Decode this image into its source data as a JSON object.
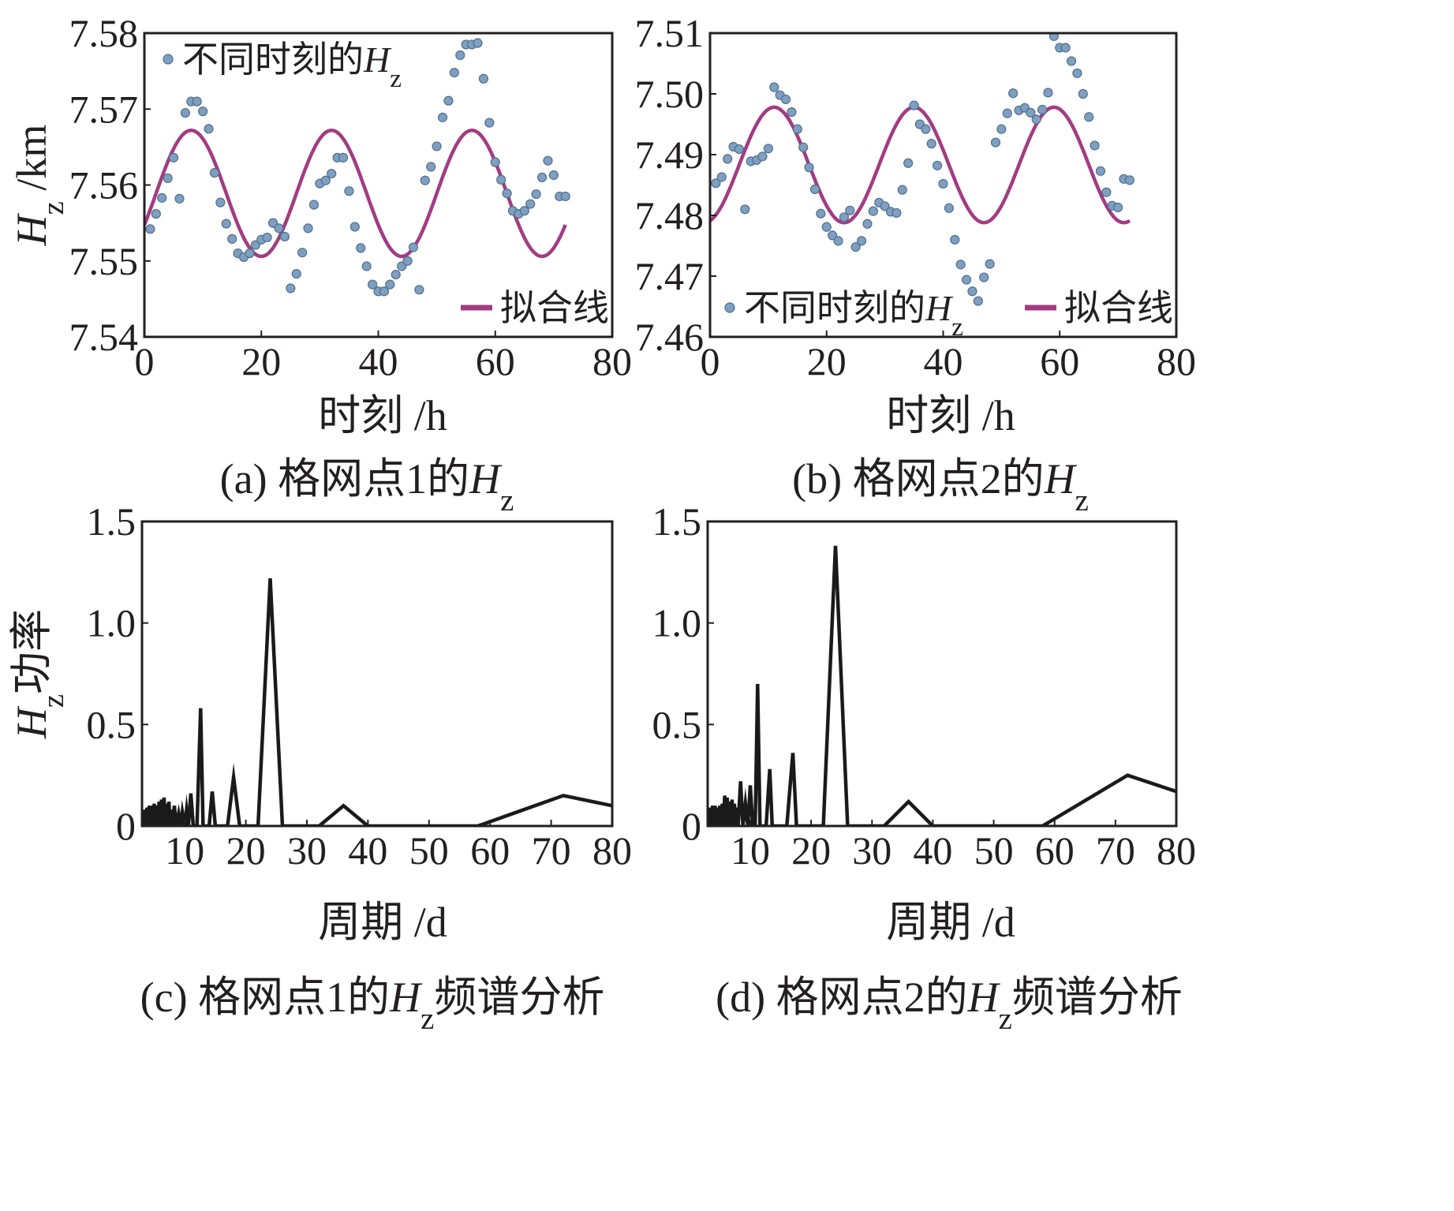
{
  "colors": {
    "scatter_fill": "#7f9fc0",
    "scatter_stroke": "#4f6f90",
    "fit_line": "#a23c82",
    "spectrum_line": "#1a1a1a",
    "ink": "#231f20"
  },
  "chart_data": [
    {
      "id": "a",
      "type": "scatter+line",
      "caption": {
        "prefix": "(a) 格网点1的",
        "var": "H",
        "sub": "z"
      },
      "xlabel": "时刻 /h",
      "ylabel": {
        "var": "H",
        "sub": "z",
        "unit": " /km"
      },
      "xlim": [
        0,
        80
      ],
      "ylim": [
        7.54,
        7.58
      ],
      "xticks": [
        0,
        20,
        40,
        60,
        80
      ],
      "xtick_labels": [
        "0",
        "20",
        "40",
        "60",
        "80"
      ],
      "yticks": [
        7.54,
        7.55,
        7.56,
        7.57,
        7.58
      ],
      "ytick_labels": [
        "7.54",
        "7.55",
        "7.56",
        "7.57",
        "7.58"
      ],
      "legend": {
        "scatter": {
          "text": "不同时刻的",
          "var": "H",
          "sub": "z"
        },
        "fit": "拟合线"
      },
      "legend_placement": {
        "scatter": "top-left",
        "fit": "bottom-right"
      },
      "points": {
        "x": [
          1,
          2,
          3,
          4,
          5,
          6,
          7,
          8,
          9,
          10,
          11,
          12,
          13,
          14,
          15,
          16,
          17,
          18,
          19,
          20,
          21,
          22,
          23,
          24,
          25,
          26,
          27,
          28,
          29,
          30,
          31,
          32,
          33,
          34,
          35,
          36,
          37,
          38,
          39,
          40,
          41,
          42,
          43,
          44,
          45,
          46,
          47,
          48,
          49,
          50,
          51,
          52,
          53,
          54,
          55,
          56,
          57,
          58,
          59,
          60,
          61,
          62,
          63,
          64,
          65,
          66,
          67,
          68,
          69,
          70,
          71,
          72
        ],
        "y": [
          7.5542,
          7.5562,
          7.5583,
          7.5609,
          7.5636,
          7.5582,
          7.5695,
          7.571,
          7.571,
          7.5697,
          7.5674,
          7.5616,
          7.5577,
          7.5549,
          7.5529,
          7.551,
          7.5505,
          7.551,
          7.5521,
          7.5528,
          7.5531,
          7.555,
          7.5543,
          7.5532,
          7.5464,
          7.5483,
          7.5511,
          7.5543,
          7.5574,
          7.5602,
          7.5606,
          7.5615,
          7.5636,
          7.5636,
          7.5592,
          7.5545,
          7.5517,
          7.5493,
          7.5469,
          7.546,
          7.546,
          7.5469,
          7.5482,
          7.5493,
          7.55,
          7.5518,
          7.5462,
          7.5606,
          7.5624,
          7.5651,
          7.5689,
          7.5711,
          7.5748,
          7.5771,
          7.5785,
          7.5785,
          7.5787,
          7.574,
          7.5682,
          7.563,
          7.5607,
          7.5589,
          7.5566,
          7.5562,
          7.5566,
          7.5575,
          7.5588,
          7.561,
          7.5632,
          7.5613,
          7.5585,
          7.5585
        ]
      },
      "fit": {
        "mean": 7.5589,
        "amplitude": 0.0083,
        "period_h": 24,
        "phase_h": 8,
        "x_start": 0,
        "x_end": 72
      }
    },
    {
      "id": "b",
      "type": "scatter+line",
      "caption": {
        "prefix": "(b) 格网点2的",
        "var": "H",
        "sub": "z"
      },
      "xlabel": "时刻 /h",
      "xlim": [
        0,
        80
      ],
      "ylim": [
        7.46,
        7.51
      ],
      "xticks": [
        0,
        20,
        40,
        60,
        80
      ],
      "xtick_labels": [
        "0",
        "20",
        "40",
        "60",
        "80"
      ],
      "yticks": [
        7.46,
        7.47,
        7.48,
        7.49,
        7.5,
        7.51
      ],
      "ytick_labels": [
        "7.46",
        "7.47",
        "7.48",
        "7.49",
        "7.50",
        "7.51"
      ],
      "legend": {
        "scatter": {
          "text": "不同时刻的",
          "var": "H",
          "sub": "z"
        },
        "fit": "拟合线"
      },
      "legend_placement": {
        "scatter": "bottom-left",
        "fit": "bottom-right"
      },
      "points": {
        "x": [
          1,
          2,
          3,
          4,
          5,
          6,
          7,
          8,
          9,
          10,
          11,
          12,
          13,
          14,
          15,
          16,
          17,
          18,
          19,
          20,
          21,
          22,
          23,
          24,
          25,
          26,
          27,
          28,
          29,
          30,
          31,
          32,
          33,
          34,
          35,
          36,
          37,
          38,
          39,
          40,
          41,
          42,
          43,
          44,
          45,
          46,
          47,
          48,
          49,
          50,
          51,
          52,
          53,
          54,
          55,
          56,
          57,
          58,
          59,
          60,
          61,
          62,
          63,
          64,
          65,
          66,
          67,
          68,
          69,
          70,
          71,
          72
        ],
        "y": [
          7.4853,
          7.4863,
          7.4893,
          7.4913,
          7.4909,
          7.481,
          7.4889,
          7.4891,
          7.4897,
          7.491,
          7.5011,
          7.4998,
          7.4991,
          7.497,
          7.4942,
          7.4912,
          7.4879,
          7.4843,
          7.4803,
          7.4781,
          7.4767,
          7.4758,
          7.4797,
          7.4808,
          7.4748,
          7.4758,
          7.4786,
          7.4807,
          7.4821,
          7.4815,
          7.4806,
          7.4804,
          7.4842,
          7.4886,
          7.4981,
          7.495,
          7.4942,
          7.4918,
          7.4882,
          7.4852,
          7.4812,
          7.476,
          7.4719,
          7.4694,
          7.4675,
          7.4659,
          7.4698,
          7.472,
          7.492,
          7.4942,
          7.4968,
          7.5001,
          7.4973,
          7.4977,
          7.4969,
          7.4958,
          7.4974,
          7.5002,
          7.5095,
          7.5076,
          7.5076,
          7.5054,
          7.5034,
          7.5,
          7.4962,
          7.4915,
          7.4873,
          7.4838,
          7.4816,
          7.4813,
          7.486,
          7.4858
        ]
      },
      "fit": {
        "mean": 7.4883,
        "amplitude": 0.0095,
        "period_h": 24,
        "phase_h": 11,
        "x_start": 0,
        "x_end": 72
      }
    },
    {
      "id": "c",
      "type": "line",
      "caption": {
        "prefix": "(c) 格网点1的",
        "var": "H",
        "sub": "z",
        "suffix": "频谱分析"
      },
      "xlabel": "周期 /d",
      "ylabel": {
        "var": "H",
        "sub": "z",
        "unit": "功率"
      },
      "xlim": [
        3,
        80
      ],
      "ylim": [
        0,
        1.5
      ],
      "xticks": [
        10,
        20,
        30,
        40,
        50,
        60,
        70,
        80
      ],
      "xtick_labels": [
        "10",
        "20",
        "30",
        "40",
        "50",
        "60",
        "70",
        "80"
      ],
      "yticks": [
        0,
        0.5,
        1.0,
        1.5
      ],
      "ytick_labels": [
        "0",
        "0.5",
        "1.0",
        "1.5"
      ],
      "x": [
        3.0,
        3.2,
        3.4,
        3.6,
        3.8,
        4.0,
        4.2,
        4.4,
        4.6,
        4.8,
        5.0,
        5.2,
        5.4,
        5.6,
        5.8,
        6.0,
        6.2,
        6.4,
        6.6,
        6.8,
        7.0,
        7.2,
        7.4,
        7.6,
        7.8,
        8.0,
        8.3,
        8.6,
        9.0,
        9.3,
        9.6,
        10.0,
        10.3,
        10.6,
        11.0,
        11.4,
        12.0,
        12.6,
        13.0,
        13.5,
        14.0,
        14.5,
        15.0,
        16.0,
        17.0,
        18.0,
        19.0,
        20.0,
        22.0,
        24.0,
        26.0,
        28.0,
        32.0,
        36.0,
        40.0,
        58.0,
        72.0,
        80.0
      ],
      "y": [
        0.07,
        0.0,
        0.08,
        0.0,
        0.09,
        0.0,
        0.1,
        0.0,
        0.1,
        0.0,
        0.11,
        0.0,
        0.1,
        0.0,
        0.12,
        0.0,
        0.13,
        0.0,
        0.14,
        0.0,
        0.11,
        0.0,
        0.12,
        0.0,
        0.08,
        0.0,
        0.1,
        0.0,
        0.06,
        0.0,
        0.07,
        0.0,
        0.08,
        0.0,
        0.16,
        0.0,
        0.0,
        0.58,
        0.0,
        0.0,
        0.0,
        0.17,
        0.0,
        0.0,
        0.0,
        0.24,
        0.0,
        0.0,
        0.0,
        1.22,
        0.0,
        0.0,
        0.0,
        0.1,
        0.0,
        0.0,
        0.15,
        0.1
      ]
    },
    {
      "id": "d",
      "type": "line",
      "caption": {
        "prefix": "(d) 格网点2的",
        "var": "H",
        "sub": "z",
        "suffix": "频谱分析"
      },
      "xlabel": "周期 /d",
      "xlim": [
        3,
        80
      ],
      "ylim": [
        0,
        1.5
      ],
      "xticks": [
        10,
        20,
        30,
        40,
        50,
        60,
        70,
        80
      ],
      "xtick_labels": [
        "10",
        "20",
        "30",
        "40",
        "50",
        "60",
        "70",
        "80"
      ],
      "yticks": [
        0,
        0.5,
        1.0,
        1.5
      ],
      "ytick_labels": [
        "0",
        "0.5",
        "1.0",
        "1.5"
      ],
      "x": [
        3.0,
        3.2,
        3.4,
        3.6,
        3.8,
        4.0,
        4.2,
        4.4,
        4.6,
        4.8,
        5.0,
        5.2,
        5.4,
        5.6,
        5.8,
        6.0,
        6.2,
        6.4,
        6.6,
        6.8,
        7.0,
        7.2,
        7.4,
        7.6,
        7.8,
        8.0,
        8.4,
        8.8,
        9.2,
        9.6,
        10.0,
        10.4,
        10.8,
        11.2,
        11.6,
        12.0,
        12.6,
        13.2,
        13.6,
        14.0,
        14.5,
        15.0,
        16.0,
        17.0,
        17.6,
        18.2,
        19.0,
        20.0,
        22.0,
        24.0,
        26.0,
        28.0,
        32.0,
        36.0,
        40.0,
        58.0,
        72.0,
        80.0
      ],
      "y": [
        0.08,
        0.0,
        0.09,
        0.0,
        0.1,
        0.0,
        0.1,
        0.0,
        0.09,
        0.0,
        0.1,
        0.0,
        0.11,
        0.0,
        0.15,
        0.0,
        0.14,
        0.0,
        0.12,
        0.0,
        0.13,
        0.0,
        0.11,
        0.0,
        0.09,
        0.0,
        0.22,
        0.0,
        0.11,
        0.0,
        0.2,
        0.0,
        0.0,
        0.7,
        0.0,
        0.0,
        0.0,
        0.28,
        0.0,
        0.0,
        0.0,
        0.0,
        0.0,
        0.36,
        0.0,
        0.0,
        0.0,
        0.0,
        0.0,
        1.38,
        0.0,
        0.0,
        0.0,
        0.12,
        0.0,
        0.0,
        0.25,
        0.17
      ]
    }
  ]
}
